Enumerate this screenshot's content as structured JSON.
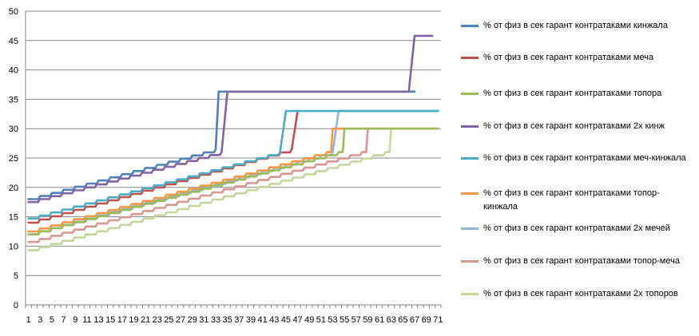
{
  "chart_data": {
    "type": "line",
    "title": "",
    "xlabel": "",
    "ylabel": "",
    "ylim": [
      0,
      50
    ],
    "yticks": [
      "0",
      "5",
      "10",
      "15",
      "20",
      "25",
      "30",
      "35",
      "40",
      "45",
      "50"
    ],
    "x_tick_labels": [
      "1",
      "3",
      "5",
      "7",
      "9",
      "11",
      "13",
      "15",
      "17",
      "19",
      "21",
      "23",
      "25",
      "27",
      "29",
      "31",
      "33",
      "35",
      "37",
      "39",
      "41",
      "43",
      "45",
      "47",
      "49",
      "51",
      "53",
      "55",
      "57",
      "59",
      "61",
      "63",
      "65",
      "67",
      "69",
      "71"
    ],
    "x_count": 71,
    "grid": "horizontal",
    "legend_position": "right",
    "series": [
      {
        "name": "% от физ в сек гарант контратаками кинжала",
        "color": "#4F81BD",
        "points": [
          [
            1,
            18
          ],
          [
            33,
            26.5
          ],
          [
            33.5,
            36.3
          ],
          [
            67,
            36.3
          ]
        ]
      },
      {
        "name": "% от физ в сек гарант контратаками меча",
        "color": "#C0504D",
        "points": [
          [
            1,
            14
          ],
          [
            46,
            26.5
          ],
          [
            47,
            33
          ]
        ]
      },
      {
        "name": "% от физ в сек гарант контратаками топора",
        "color": "#9BBB59",
        "points": [
          [
            1,
            12
          ],
          [
            54,
            26
          ],
          [
            55,
            30
          ],
          [
            71,
            30
          ]
        ]
      },
      {
        "name": "% от физ в сек гарант контратаками 2х кинж",
        "color": "#8064A2",
        "points": [
          [
            1,
            17.5
          ],
          [
            34,
            26
          ],
          [
            35,
            36.3
          ],
          [
            66,
            36.3
          ],
          [
            67,
            45.8
          ],
          [
            70,
            45.8
          ]
        ]
      },
      {
        "name": "% от физ в сек гарант контратаками меч-кинжала",
        "color": "#4BACC6",
        "points": [
          [
            1,
            14.7
          ],
          [
            44,
            26
          ],
          [
            45,
            33
          ],
          [
            71,
            33
          ]
        ]
      },
      {
        "name": "% от физ в сек гарант контратаками топор-кинжала",
        "color": "#F79646",
        "points": [
          [
            1,
            12.5
          ],
          [
            52,
            26
          ],
          [
            53,
            30
          ],
          [
            71,
            30
          ]
        ]
      },
      {
        "name": "% от физ в сек гарант контратаками 2х мечей",
        "color": "#95B3D7",
        "points": [
          [
            1,
            12
          ],
          [
            53,
            26
          ],
          [
            54,
            33
          ],
          [
            71,
            33
          ]
        ]
      },
      {
        "name": "% от физ в сек гарант контратаками топор-меча",
        "color": "#D99694",
        "points": [
          [
            1,
            10.7
          ],
          [
            58,
            26
          ],
          [
            59,
            30
          ],
          [
            71,
            30
          ]
        ]
      },
      {
        "name": "% от физ в сек гарант контратаками 2х топоров",
        "color": "#C3D69B",
        "points": [
          [
            1,
            9.3
          ],
          [
            62,
            26
          ],
          [
            63,
            30
          ],
          [
            71,
            30
          ]
        ]
      }
    ]
  },
  "legend": {
    "items": [
      {
        "label": "% от физ в сек гарант контратаками кинжала",
        "color": "#4F81BD"
      },
      {
        "label": "% от физ в сек гарант контратаками меча",
        "color": "#C0504D"
      },
      {
        "label": "% от физ в сек гарант контратаками топора",
        "color": "#9BBB59"
      },
      {
        "label": "% от физ в сек гарант контратаками 2х кинж",
        "color": "#8064A2"
      },
      {
        "label": "% от физ в сек гарант контратаками меч-кинжала",
        "color": "#4BACC6"
      },
      {
        "label": "% от физ в сек гарант контратаками топор-кинжала",
        "color": "#F79646"
      },
      {
        "label": "% от физ в сек гарант контратаками 2х мечей",
        "color": "#95B3D7"
      },
      {
        "label": "% от физ в сек гарант контратаками топор-меча",
        "color": "#D99694"
      },
      {
        "label": "% от физ в сек гарант контратаками 2х топоров",
        "color": "#C3D69B"
      }
    ]
  }
}
